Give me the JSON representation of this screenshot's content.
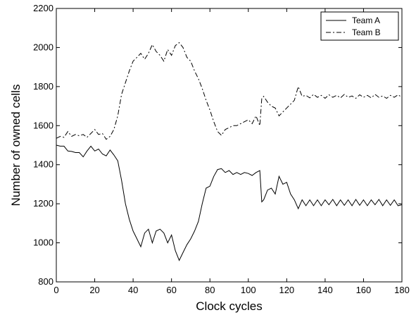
{
  "chart_data": {
    "type": "line",
    "title": "",
    "xlabel": "Clock cycles",
    "ylabel": "Number of owned cells",
    "xlim": [
      0,
      180
    ],
    "ylim": [
      800,
      2200
    ],
    "xticks": [
      "0",
      "20",
      "40",
      "60",
      "80",
      "100",
      "120",
      "140",
      "160",
      "180"
    ],
    "yticks": [
      "800",
      "1000",
      "1200",
      "1400",
      "1600",
      "1800",
      "2000",
      "2200"
    ],
    "grid": false,
    "legend_position": "top-right",
    "series": [
      {
        "name": "Team A",
        "style": "solid",
        "color": "#000000",
        "x": [
          0,
          2,
          4,
          6,
          8,
          10,
          12,
          14,
          16,
          18,
          20,
          22,
          24,
          26,
          28,
          30,
          32,
          34,
          36,
          38,
          40,
          42,
          44,
          46,
          48,
          50,
          52,
          54,
          56,
          58,
          60,
          62,
          64,
          66,
          68,
          70,
          72,
          74,
          76,
          78,
          80,
          82,
          84,
          86,
          88,
          90,
          92,
          94,
          96,
          98,
          100,
          102,
          104,
          106,
          107,
          108,
          110,
          112,
          114,
          116,
          118,
          120,
          122,
          124,
          126,
          128,
          130,
          132,
          134,
          136,
          138,
          140,
          142,
          144,
          146,
          148,
          150,
          152,
          154,
          156,
          158,
          160,
          162,
          164,
          166,
          168,
          170,
          172,
          174,
          176,
          178,
          180
        ],
        "values": [
          1500,
          1495,
          1495,
          1470,
          1468,
          1462,
          1462,
          1440,
          1470,
          1495,
          1470,
          1480,
          1455,
          1445,
          1475,
          1450,
          1420,
          1320,
          1200,
          1120,
          1060,
          1020,
          980,
          1050,
          1070,
          1000,
          1060,
          1070,
          1050,
          1000,
          1040,
          960,
          910,
          950,
          990,
          1020,
          1060,
          1110,
          1200,
          1280,
          1290,
          1340,
          1375,
          1380,
          1360,
          1370,
          1350,
          1360,
          1350,
          1360,
          1355,
          1345,
          1360,
          1370,
          1210,
          1220,
          1270,
          1280,
          1250,
          1340,
          1300,
          1310,
          1250,
          1220,
          1175,
          1220,
          1190,
          1220,
          1190,
          1220,
          1190,
          1220,
          1195,
          1222,
          1190,
          1220,
          1192,
          1220,
          1190,
          1222,
          1192,
          1220,
          1190,
          1220,
          1195,
          1222,
          1190,
          1220,
          1192,
          1220,
          1190,
          1195
        ]
      },
      {
        "name": "Team B",
        "style": "dashdot",
        "color": "#000000",
        "x": [
          0,
          2,
          4,
          6,
          8,
          10,
          12,
          14,
          16,
          18,
          20,
          22,
          24,
          26,
          28,
          30,
          32,
          34,
          36,
          38,
          40,
          42,
          44,
          46,
          48,
          50,
          52,
          54,
          56,
          58,
          60,
          62,
          64,
          66,
          68,
          70,
          72,
          74,
          76,
          78,
          80,
          82,
          84,
          86,
          88,
          90,
          92,
          94,
          96,
          98,
          100,
          102,
          104,
          106,
          107,
          108,
          110,
          112,
          114,
          116,
          118,
          120,
          122,
          124,
          126,
          128,
          130,
          132,
          134,
          136,
          138,
          140,
          142,
          144,
          146,
          148,
          150,
          152,
          154,
          156,
          158,
          160,
          162,
          164,
          166,
          168,
          170,
          172,
          174,
          176,
          178,
          180
        ],
        "values": [
          1535,
          1545,
          1540,
          1570,
          1545,
          1555,
          1548,
          1555,
          1540,
          1560,
          1580,
          1555,
          1560,
          1530,
          1545,
          1580,
          1650,
          1760,
          1820,
          1880,
          1930,
          1950,
          1970,
          1940,
          1970,
          2015,
          1980,
          1960,
          1930,
          1990,
          1960,
          2010,
          2025,
          2000,
          1950,
          1930,
          1880,
          1840,
          1790,
          1730,
          1680,
          1620,
          1570,
          1550,
          1580,
          1590,
          1600,
          1600,
          1610,
          1620,
          1630,
          1610,
          1650,
          1600,
          1740,
          1750,
          1720,
          1700,
          1690,
          1650,
          1670,
          1690,
          1710,
          1730,
          1800,
          1750,
          1755,
          1742,
          1760,
          1745,
          1755,
          1740,
          1758,
          1745,
          1755,
          1742,
          1760,
          1745,
          1752,
          1740,
          1758,
          1745,
          1755,
          1742,
          1760,
          1745,
          1752,
          1740,
          1755,
          1745,
          1758,
          1745
        ]
      }
    ]
  }
}
